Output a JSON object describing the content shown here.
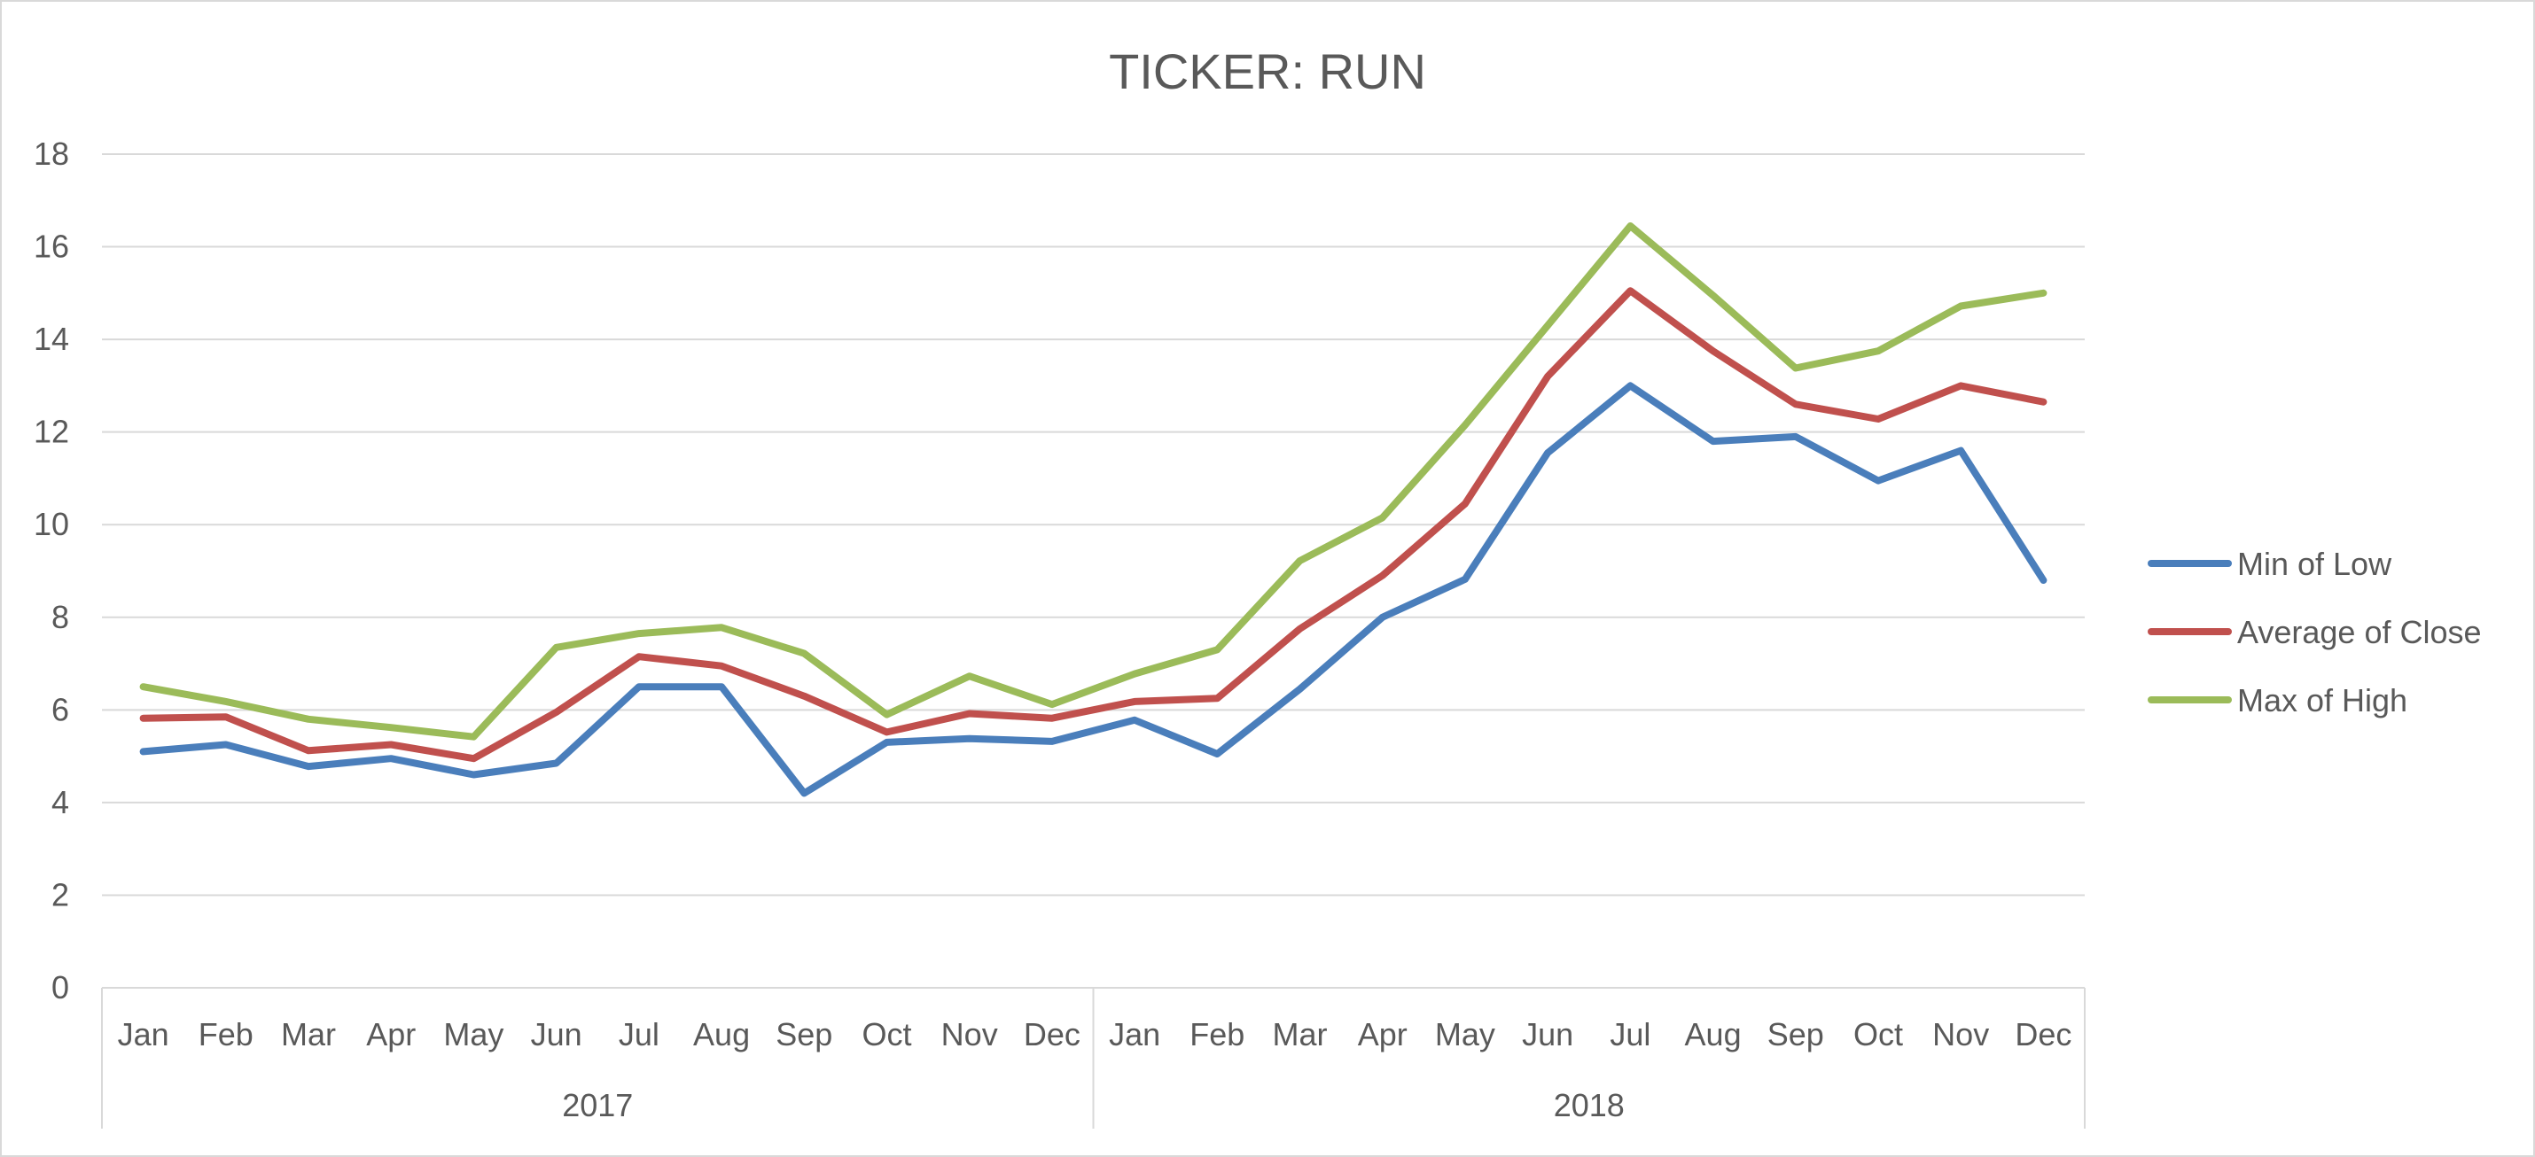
{
  "chart_data": {
    "type": "line",
    "title": "TICKER: RUN",
    "xlabel": "",
    "ylabel": "",
    "ylim": [
      0,
      18
    ],
    "yticks": [
      0,
      2,
      4,
      6,
      8,
      10,
      12,
      14,
      16,
      18
    ],
    "grid": true,
    "legend_position": "right",
    "categories": [
      "Jan",
      "Feb",
      "Mar",
      "Apr",
      "May",
      "Jun",
      "Jul",
      "Aug",
      "Sep",
      "Oct",
      "Nov",
      "Dec",
      "Jan",
      "Feb",
      "Mar",
      "Apr",
      "May",
      "Jun",
      "Jul",
      "Aug",
      "Sep",
      "Oct",
      "Nov",
      "Dec"
    ],
    "groups": [
      {
        "label": "2017",
        "count": 12
      },
      {
        "label": "2018",
        "count": 12
      }
    ],
    "series": [
      {
        "name": "Min of Low",
        "color": "#4a7ebb",
        "values": [
          5.1,
          5.25,
          4.78,
          4.95,
          4.6,
          4.85,
          6.5,
          6.5,
          4.2,
          5.3,
          5.38,
          5.32,
          5.78,
          5.05,
          6.45,
          8.0,
          8.82,
          11.55,
          13.0,
          11.8,
          11.9,
          10.95,
          11.6,
          8.8
        ]
      },
      {
        "name": "Average of Close",
        "color": "#c0504d",
        "values": [
          5.82,
          5.85,
          5.12,
          5.25,
          4.95,
          5.95,
          7.15,
          6.95,
          6.3,
          5.52,
          5.92,
          5.82,
          6.18,
          6.25,
          7.75,
          8.9,
          10.45,
          13.2,
          15.05,
          13.75,
          12.6,
          12.28,
          13.0,
          12.65
        ]
      },
      {
        "name": "Max of High",
        "color": "#9bbb59",
        "values": [
          6.5,
          6.18,
          5.8,
          5.62,
          5.42,
          7.35,
          7.65,
          7.78,
          7.22,
          5.9,
          6.73,
          6.12,
          6.78,
          7.3,
          9.22,
          10.15,
          12.15,
          14.3,
          16.45,
          14.95,
          13.38,
          13.75,
          14.72,
          15.0
        ]
      }
    ]
  }
}
